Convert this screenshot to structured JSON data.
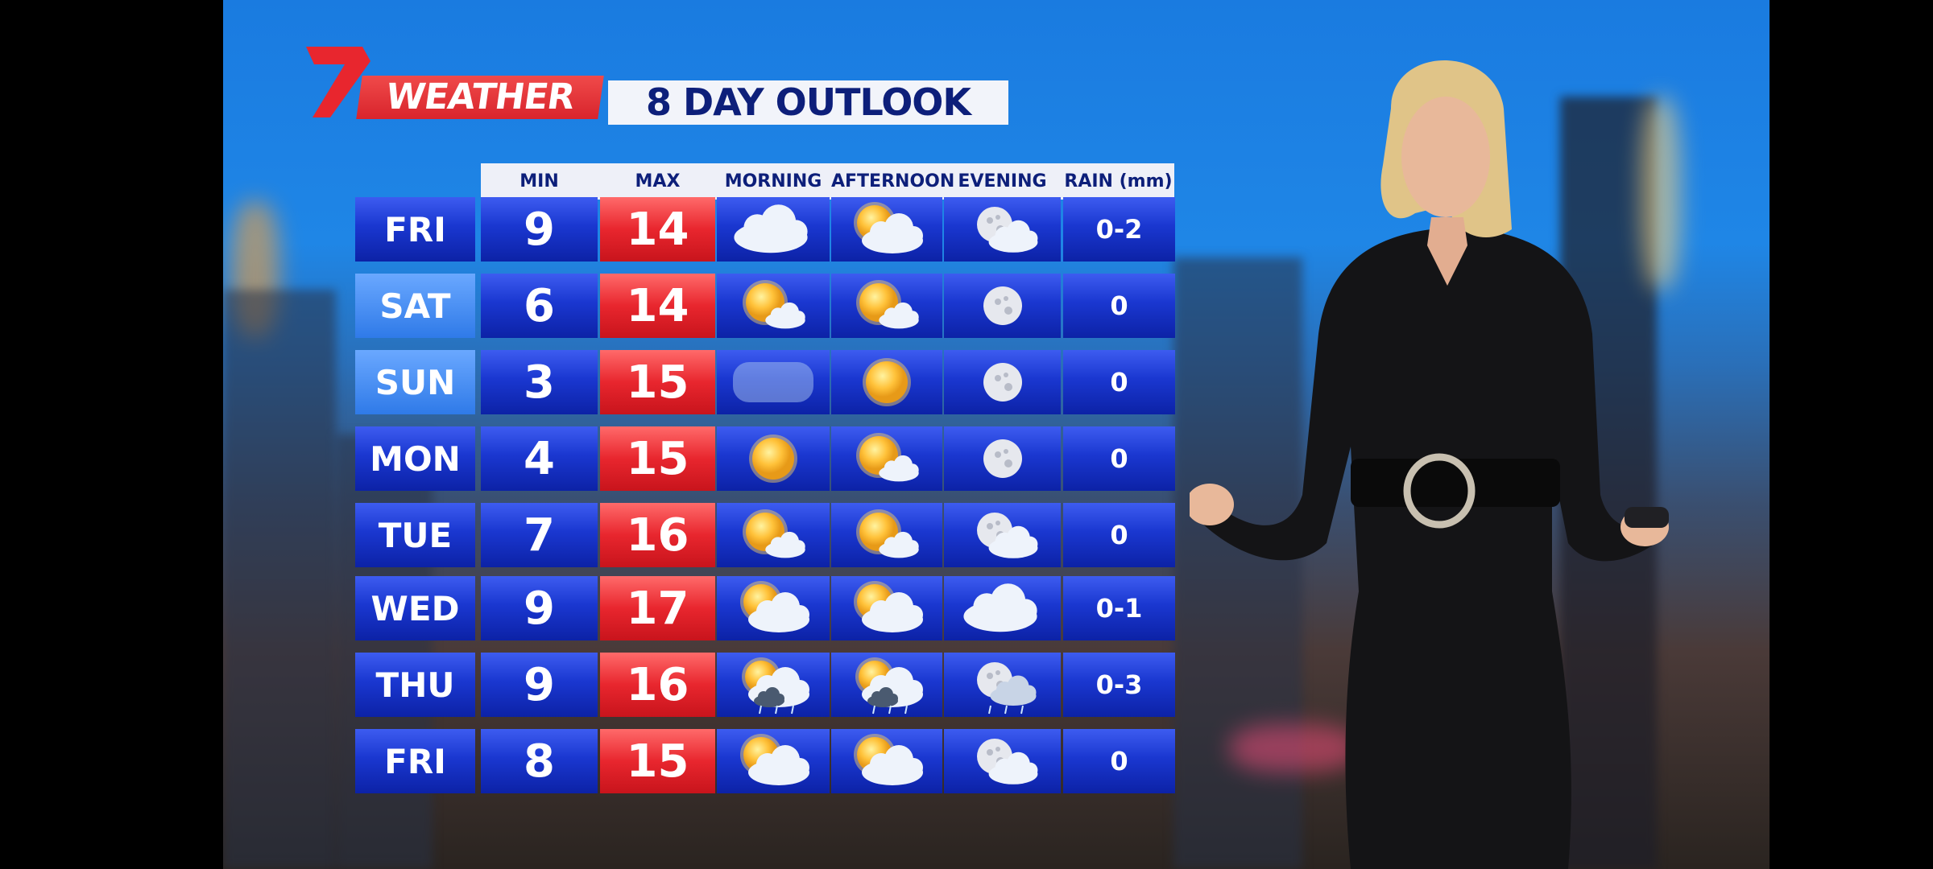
{
  "brand": {
    "logo_text": "7",
    "label": "WEATHER",
    "accent": "#e8262e"
  },
  "title": "8 DAY OUTLOOK",
  "columns": [
    "MIN",
    "MAX",
    "MORNING",
    "AFTERNOON",
    "EVENING",
    "RAIN (mm)"
  ],
  "colors": {
    "min_cell": "#1a37d0",
    "max_cell": "#e8262e",
    "header": "#eef0f8",
    "header_text": "#0d1f7a"
  },
  "rows": [
    {
      "day": "FRI",
      "min": "9",
      "max": "14",
      "morning": "cloudy",
      "afternoon": "partly-cloudy",
      "evening": "moon-cloud",
      "rain": "0-2"
    },
    {
      "day": "SAT",
      "min": "6",
      "max": "14",
      "morning": "mostly-sunny",
      "afternoon": "mostly-sunny",
      "evening": "moon",
      "rain": "0"
    },
    {
      "day": "SUN",
      "min": "3",
      "max": "15",
      "morning": "fog",
      "afternoon": "sunny",
      "evening": "moon",
      "rain": "0"
    },
    {
      "day": "MON",
      "min": "4",
      "max": "15",
      "morning": "sunny",
      "afternoon": "mostly-sunny",
      "evening": "moon",
      "rain": "0"
    },
    {
      "day": "TUE",
      "min": "7",
      "max": "16",
      "morning": "mostly-sunny",
      "afternoon": "mostly-sunny",
      "evening": "moon-cloud",
      "rain": "0"
    },
    {
      "day": "WED",
      "min": "9",
      "max": "17",
      "morning": "partly-cloudy",
      "afternoon": "partly-cloudy",
      "evening": "cloudy",
      "rain": "0-1"
    },
    {
      "day": "THU",
      "min": "9",
      "max": "16",
      "morning": "showers",
      "afternoon": "showers",
      "evening": "moon-showers",
      "rain": "0-3"
    },
    {
      "day": "FRI",
      "min": "8",
      "max": "15",
      "morning": "partly-cloudy",
      "afternoon": "partly-cloudy",
      "evening": "moon-cloud",
      "rain": "0"
    }
  ]
}
